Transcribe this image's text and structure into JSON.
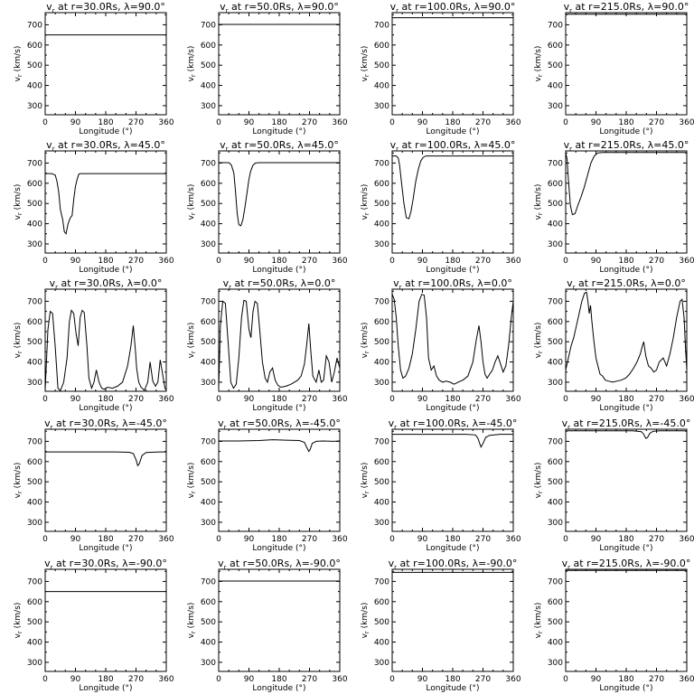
{
  "figure": {
    "xlabel": "Longitude (°)",
    "ylabel": "v_r (km/s)",
    "xlim": [
      0,
      360
    ],
    "ylim": [
      255,
      760
    ],
    "xticks": [
      0,
      90,
      180,
      270,
      360
    ],
    "yticks": [
      300,
      400,
      500,
      600,
      700
    ]
  },
  "chart_data": [
    {
      "type": "line",
      "title": "vr at r=30.0Rs, λ=90.0°",
      "r": "30.0",
      "lat": "90.0",
      "x": [
        0,
        360
      ],
      "y": [
        650,
        650
      ]
    },
    {
      "type": "line",
      "title": "vr at r=50.0Rs, λ=90.0°",
      "r": "50.0",
      "lat": "90.0",
      "x": [
        0,
        360
      ],
      "y": [
        702,
        702
      ]
    },
    {
      "type": "line",
      "title": "vr at r=100.0Rs, λ=90.0°",
      "r": "100.0",
      "lat": "90.0",
      "x": [
        0,
        360
      ],
      "y": [
        735,
        735
      ]
    },
    {
      "type": "line",
      "title": "vr at r=215.0Rs, λ=90.0°",
      "r": "215.0",
      "lat": "90.0",
      "x": [
        0,
        360
      ],
      "y": [
        752,
        752
      ]
    },
    {
      "type": "line",
      "title": "vr at r=30.0Rs, λ=45.0°",
      "r": "30.0",
      "lat": "45.0",
      "x": [
        0,
        20,
        30,
        35,
        40,
        45,
        52,
        57,
        62,
        68,
        75,
        80,
        85,
        90,
        95,
        100,
        105,
        120,
        200,
        270,
        360
      ],
      "y": [
        648,
        648,
        640,
        610,
        560,
        470,
        420,
        360,
        350,
        400,
        430,
        440,
        520,
        585,
        620,
        645,
        648,
        648,
        648,
        648,
        648
      ]
    },
    {
      "type": "line",
      "title": "vr at r=50.0Rs, λ=45.0°",
      "r": "50.0",
      "lat": "45.0",
      "x": [
        0,
        30,
        38,
        45,
        50,
        55,
        60,
        66,
        72,
        78,
        85,
        90,
        95,
        102,
        110,
        120,
        150,
        200,
        270,
        360
      ],
      "y": [
        702,
        702,
        690,
        650,
        560,
        450,
        395,
        390,
        420,
        480,
        560,
        620,
        660,
        690,
        700,
        702,
        702,
        702,
        702,
        702
      ]
    },
    {
      "type": "line",
      "title": "vr at r=100.0Rs, λ=45.0°",
      "r": "100.0",
      "lat": "45.0",
      "x": [
        0,
        12,
        18,
        22,
        28,
        35,
        42,
        50,
        56,
        62,
        70,
        78,
        85,
        92,
        100,
        110,
        130,
        200,
        270,
        360
      ],
      "y": [
        735,
        735,
        725,
        690,
        600,
        500,
        430,
        425,
        460,
        520,
        610,
        670,
        710,
        728,
        735,
        735,
        735,
        735,
        735,
        735
      ]
    },
    {
      "type": "line",
      "title": "vr at r=215.0Rs, λ=45.0°",
      "r": "215.0",
      "lat": "45.0",
      "x": [
        0,
        4,
        8,
        14,
        20,
        28,
        36,
        45,
        55,
        65,
        75,
        85,
        95,
        110,
        130,
        200,
        270,
        360
      ],
      "y": [
        752,
        720,
        620,
        490,
        445,
        450,
        490,
        530,
        580,
        640,
        700,
        735,
        750,
        752,
        752,
        752,
        752,
        752
      ]
    },
    {
      "type": "line",
      "title": "vr at r=30.0Rs, λ=0.0°",
      "r": "30.0",
      "lat": "0.0",
      "x": [
        0,
        8,
        15,
        22,
        30,
        38,
        45,
        55,
        65,
        72,
        78,
        85,
        92,
        98,
        104,
        110,
        116,
        124,
        130,
        138,
        145,
        152,
        160,
        168,
        176,
        185,
        200,
        215,
        230,
        245,
        255,
        262,
        268,
        272,
        278,
        285,
        295,
        305,
        312,
        320,
        328,
        335,
        342,
        350,
        356,
        360
      ],
      "y": [
        260,
        560,
        650,
        640,
        470,
        270,
        258,
        300,
        420,
        600,
        655,
        640,
        540,
        480,
        620,
        655,
        645,
        480,
        320,
        270,
        300,
        360,
        300,
        270,
        265,
        275,
        270,
        280,
        300,
        380,
        480,
        580,
        460,
        370,
        300,
        275,
        260,
        300,
        400,
        305,
        280,
        300,
        410,
        330,
        270,
        260
      ]
    },
    {
      "type": "line",
      "title": "vr at r=50.0Rs, λ=0.0°",
      "r": "50.0",
      "lat": "0.0",
      "x": [
        0,
        5,
        12,
        20,
        28,
        36,
        44,
        52,
        60,
        68,
        75,
        82,
        90,
        96,
        102,
        108,
        115,
        122,
        130,
        138,
        145,
        152,
        160,
        168,
        176,
        185,
        200,
        215,
        225,
        235,
        245,
        255,
        262,
        268,
        274,
        280,
        290,
        298,
        305,
        312,
        320,
        328,
        336,
        344,
        352,
        360
      ],
      "y": [
        270,
        580,
        700,
        690,
        500,
        300,
        270,
        290,
        420,
        620,
        705,
        700,
        560,
        520,
        650,
        700,
        690,
        560,
        400,
        320,
        300,
        350,
        370,
        310,
        285,
        275,
        280,
        290,
        300,
        310,
        330,
        390,
        490,
        590,
        450,
        330,
        300,
        360,
        300,
        310,
        430,
        400,
        300,
        350,
        420,
        370
      ]
    },
    {
      "type": "line",
      "title": "vr at r=100.0Rs, λ=0.0°",
      "r": "100.0",
      "lat": "0.0",
      "x": [
        0,
        6,
        12,
        18,
        25,
        32,
        40,
        50,
        60,
        70,
        80,
        88,
        95,
        102,
        108,
        116,
        124,
        132,
        140,
        150,
        160,
        172,
        184,
        196,
        210,
        225,
        240,
        250,
        258,
        264,
        270,
        276,
        282,
        290,
        298,
        306,
        314,
        322,
        330,
        338,
        346,
        354,
        360
      ],
      "y": [
        735,
        710,
        620,
        480,
        360,
        320,
        330,
        370,
        440,
        560,
        700,
        735,
        730,
        620,
        420,
        360,
        380,
        330,
        310,
        300,
        305,
        300,
        290,
        300,
        310,
        330,
        400,
        510,
        580,
        500,
        400,
        340,
        320,
        340,
        360,
        400,
        430,
        390,
        350,
        380,
        480,
        620,
        700
      ]
    },
    {
      "type": "line",
      "title": "vr at r=215.0Rs, λ=0.0°",
      "r": "215.0",
      "lat": "0.0",
      "x": [
        0,
        8,
        16,
        24,
        32,
        40,
        48,
        56,
        62,
        66,
        70,
        74,
        78,
        84,
        90,
        96,
        102,
        110,
        118,
        128,
        140,
        152,
        165,
        178,
        190,
        202,
        212,
        222,
        228,
        232,
        238,
        246,
        254,
        262,
        270,
        278,
        290,
        300,
        310,
        320,
        330,
        340,
        346,
        352,
        356,
        360
      ],
      "y": [
        360,
        420,
        480,
        520,
        580,
        640,
        700,
        740,
        745,
        700,
        640,
        680,
        600,
        500,
        420,
        380,
        340,
        330,
        310,
        305,
        300,
        305,
        310,
        320,
        340,
        370,
        400,
        440,
        480,
        500,
        430,
        380,
        370,
        350,
        360,
        400,
        420,
        380,
        440,
        520,
        620,
        700,
        710,
        620,
        480,
        360
      ]
    },
    {
      "type": "line",
      "title": "vr at r=30.0Rs, λ=-45.0°",
      "r": "30.0",
      "lat": "-45.0",
      "x": [
        0,
        100,
        200,
        250,
        262,
        270,
        275,
        280,
        288,
        300,
        340,
        360
      ],
      "y": [
        648,
        648,
        648,
        646,
        640,
        610,
        580,
        590,
        630,
        645,
        648,
        648
      ]
    },
    {
      "type": "line",
      "title": "vr at r=50.0Rs, λ=-45.0°",
      "r": "50.0",
      "lat": "-45.0",
      "x": [
        0,
        60,
        120,
        160,
        200,
        240,
        255,
        262,
        268,
        272,
        278,
        290,
        310,
        340,
        360
      ],
      "y": [
        702,
        702,
        704,
        708,
        706,
        704,
        695,
        670,
        650,
        660,
        690,
        700,
        702,
        700,
        702
      ]
    },
    {
      "type": "line",
      "title": "vr at r=100.0Rs, λ=-45.0°",
      "r": "100.0",
      "lat": "-45.0",
      "x": [
        0,
        80,
        160,
        220,
        248,
        255,
        260,
        264,
        270,
        278,
        290,
        320,
        360
      ],
      "y": [
        735,
        735,
        735,
        735,
        732,
        715,
        690,
        672,
        690,
        720,
        730,
        735,
        735
      ]
    },
    {
      "type": "line",
      "title": "vr at r=215.0Rs, λ=-45.0°",
      "r": "215.0",
      "lat": "-45.0",
      "x": [
        0,
        100,
        200,
        225,
        232,
        238,
        243,
        250,
        260,
        280,
        320,
        360
      ],
      "y": [
        752,
        752,
        752,
        748,
        735,
        715,
        718,
        740,
        750,
        752,
        752,
        752
      ]
    },
    {
      "type": "line",
      "title": "vr at r=30.0Rs, λ=-90.0°",
      "r": "30.0",
      "lat": "-90.0",
      "x": [
        0,
        360
      ],
      "y": [
        650,
        650
      ]
    },
    {
      "type": "line",
      "title": "vr at r=50.0Rs, λ=-90.0°",
      "r": "50.0",
      "lat": "-90.0",
      "x": [
        0,
        360
      ],
      "y": [
        702,
        702
      ]
    },
    {
      "type": "line",
      "title": "vr at r=100.0Rs, λ=-90.0°",
      "r": "100.0",
      "lat": "-90.0",
      "x": [
        0,
        360
      ],
      "y": [
        745,
        745
      ]
    },
    {
      "type": "line",
      "title": "vr at r=215.0Rs, λ=-90.0°",
      "r": "215.0",
      "lat": "-90.0",
      "x": [
        0,
        360
      ],
      "y": [
        754,
        754
      ]
    }
  ]
}
